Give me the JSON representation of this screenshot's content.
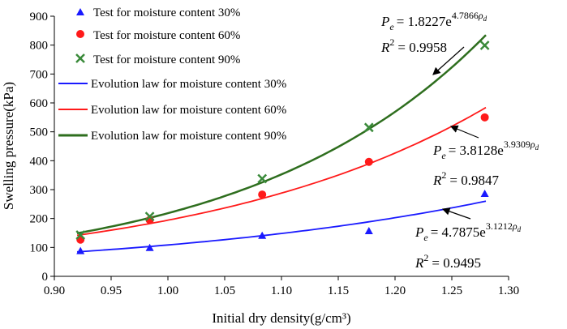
{
  "chart_data": {
    "type": "scatter",
    "title": "",
    "xlabel": "Initial dry density(g/cm³)",
    "ylabel": "Swelling pressure(kPa)",
    "xlim": [
      0.9,
      1.3
    ],
    "ylim": [
      0,
      900
    ],
    "xticks": [
      "0.90",
      "0.95",
      "1.00",
      "1.05",
      "1.10",
      "1.15",
      "1.20",
      "1.25",
      "1.30"
    ],
    "yticks": [
      "0",
      "100",
      "200",
      "300",
      "400",
      "500",
      "600",
      "700",
      "800",
      "900"
    ],
    "grid": false,
    "legend_position": "top-left",
    "series": [
      {
        "name": "Test for moisture content 30%",
        "marker": "triangle",
        "color": "#1a1aff",
        "x": [
          0.923,
          0.984,
          1.083,
          1.177,
          1.279
        ],
        "y": [
          88,
          99,
          141,
          157,
          286
        ]
      },
      {
        "name": "Test for moisture content 60%",
        "marker": "circle",
        "color": "#ff1a1a",
        "x": [
          0.923,
          0.984,
          1.083,
          1.177,
          1.279
        ],
        "y": [
          127,
          195,
          283,
          396,
          550
        ]
      },
      {
        "name": "Test for moisture content 90%",
        "marker": "x",
        "color": "#3a8a3a",
        "x": [
          0.923,
          0.984,
          1.083,
          1.177,
          1.279
        ],
        "y": [
          143,
          207,
          338,
          515,
          799
        ]
      }
    ],
    "fits": [
      {
        "name": "Evolution law for moisture content 30%",
        "color": "#1a1aff",
        "a": 4.7875,
        "b": 3.1212,
        "x_range": [
          0.92,
          1.28
        ],
        "equation": {
          "pe": "P",
          "pe_sub": "e",
          "rhs": "= 4.7875e",
          "exp": "3.1212",
          "rho": "ρ",
          "rho_sub": "d"
        },
        "r2": {
          "label": "R",
          "sup": "2",
          "value": "= 0.9495"
        }
      },
      {
        "name": "Evolution law for moisture content 60%",
        "color": "#ff1a1a",
        "a": 3.8128,
        "b": 3.9309,
        "x_range": [
          0.92,
          1.28
        ],
        "equation": {
          "pe": "P",
          "pe_sub": "e",
          "rhs": "= 3.8128e",
          "exp": "3.9309",
          "rho": "ρ",
          "rho_sub": "d"
        },
        "r2": {
          "label": "R",
          "sup": "2",
          "value": "= 0.9847"
        }
      },
      {
        "name": "Evolution law for moisture content 90%",
        "color": "#2e6e1e",
        "a": 1.8227,
        "b": 4.7866,
        "x_range": [
          0.92,
          1.28
        ],
        "equation": {
          "pe": "P",
          "pe_sub": "e",
          "rhs": "= 1.8227e",
          "exp": "4.7866",
          "rho": "ρ",
          "rho_sub": "d"
        },
        "r2": {
          "label": "R",
          "sup": "2",
          "value": "= 0.9958"
        }
      }
    ]
  }
}
